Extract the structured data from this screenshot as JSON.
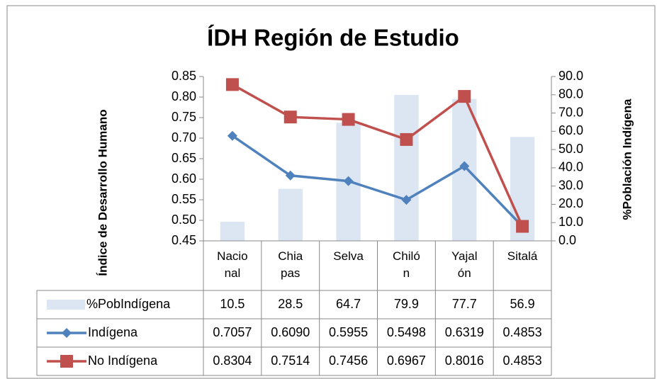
{
  "chart_data": {
    "type": "bar-line",
    "title": "ÍDH Región de Estudio",
    "ylabel": "Índice de Desarrollo Humano",
    "y2label": "%Población Indígena",
    "categories": [
      "Nacional",
      "Chiapas",
      "Selva",
      "Chilón",
      "Yajalón",
      "Sitalá"
    ],
    "series": [
      {
        "name": "%PobIndígena",
        "type": "bar",
        "axis": "y2",
        "color": "#dce6f2",
        "values": [
          10.5,
          28.5,
          64.7,
          79.9,
          77.7,
          56.9
        ]
      },
      {
        "name": "Indígena",
        "type": "line",
        "marker": "diamond",
        "color": "#4f81bd",
        "values": [
          0.7057,
          0.609,
          0.5955,
          0.5498,
          0.6319,
          0.4853
        ],
        "value_labels": [
          "0.7057",
          "0.6090",
          "0.5955",
          "0.5498",
          "0.6319",
          "0.4853"
        ]
      },
      {
        "name": "No Indígena",
        "type": "line",
        "marker": "square",
        "color": "#c0504d",
        "values": [
          0.8304,
          0.7514,
          0.7456,
          0.6967,
          0.8016,
          0.4853
        ],
        "value_labels": [
          "0.8304",
          "0.7514",
          "0.7456",
          "0.6967",
          "0.8016",
          "0.4853"
        ]
      }
    ],
    "ylim": [
      0.45,
      0.85
    ],
    "yticks": [
      0.45,
      {
        "value": 0.5,
        "label": "0.50"
      },
      0.55,
      {
        "value": 0.6,
        "label": "0.60"
      },
      0.65,
      {
        "value": 0.7,
        "label": "0.70"
      },
      0.75,
      {
        "value": 0.8,
        "label": "0.80"
      },
      0.85
    ],
    "y2lim": [
      0,
      90
    ],
    "y2ticks": [
      {
        "value": 0,
        "label": "0.0"
      },
      {
        "value": 10,
        "label": "10.0"
      },
      {
        "value": 20,
        "label": "20.0"
      },
      {
        "value": 30,
        "label": "30.0"
      },
      {
        "value": 40,
        "label": "40.0"
      },
      {
        "value": 50,
        "label": "50.0"
      },
      {
        "value": 60,
        "label": "60.0"
      },
      {
        "value": 70,
        "label": "70.0"
      },
      {
        "value": 80,
        "label": "80.0"
      },
      {
        "value": 90,
        "label": "90.0"
      }
    ],
    "data_table": true
  }
}
